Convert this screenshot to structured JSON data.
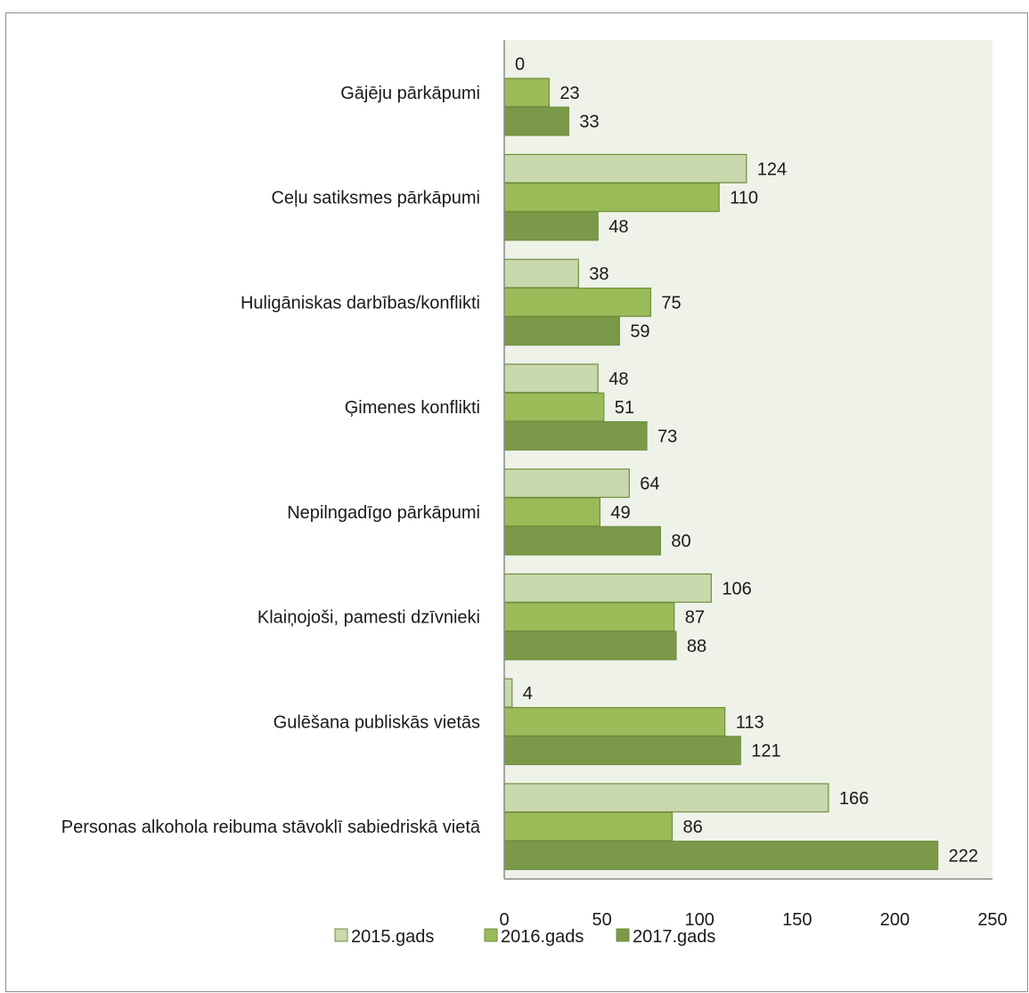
{
  "chart_data": {
    "type": "bar",
    "orientation": "horizontal",
    "title": "",
    "xlabel": "",
    "ylabel": "",
    "xlim": [
      0,
      250
    ],
    "x_ticks": [
      "0",
      "50",
      "100",
      "150",
      "200",
      "250"
    ],
    "grid": false,
    "legend_position": "bottom",
    "categories": [
      "Gājēju pārkāpumi",
      "Ceļu satiksmes pārkāpumi",
      "Huligāniskas darbības/konflikti",
      "Ģimenes konflikti",
      "Nepilngadīgo pārkāpumi",
      "Klaiņojoši, pamesti dzīvnieki",
      "Gulēšana publiskās vietās",
      "Personas alkohola reibuma stāvoklī sabiedriskā vietā"
    ],
    "series": [
      {
        "name": "2015.gads",
        "color": "#c9d8ad",
        "values": [
          0,
          124,
          38,
          48,
          64,
          106,
          4,
          166
        ]
      },
      {
        "name": "2016.gads",
        "color": "#9bbb59",
        "values": [
          23,
          110,
          75,
          51,
          49,
          87,
          113,
          86
        ]
      },
      {
        "name": "2017.gads",
        "color": "#7a9a4a",
        "values": [
          33,
          48,
          59,
          73,
          80,
          88,
          121,
          222
        ]
      }
    ],
    "plot_background": "#eef2e8",
    "bar_border": "#6f8f3f"
  }
}
